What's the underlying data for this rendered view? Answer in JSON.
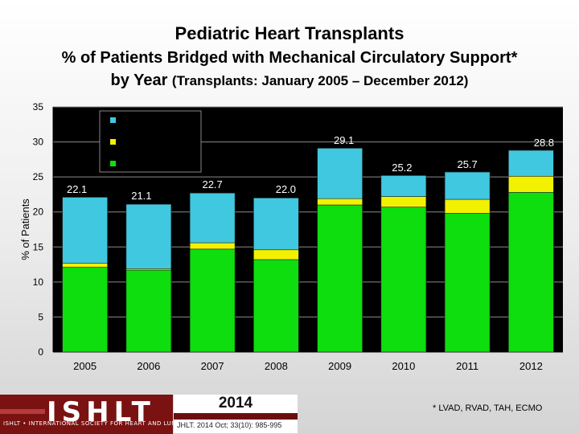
{
  "title_line1": "Pediatric Heart Transplants",
  "title_line2": "% of Patients Bridged with Mechanical Circulatory Support*",
  "title_line3_main": "by Year",
  "title_line3_small": "(Transplants: January 2005 – December 2012)",
  "footer": {
    "logo_text": "ISHLT",
    "logo_subtext": "ISHLT • INTERNATIONAL SOCIETY FOR HEART AND LUNG TRANSPLANTATION",
    "year": "2014",
    "citation": "JHLT. 2014 Oct; 33(10): 985-995",
    "footnote": "* LVAD, RVAD, TAH, ECMO"
  },
  "colors": {
    "bottom": "#0edd0e",
    "middle": "#f2f200",
    "top": "#40c8e0",
    "plot_bg": "#000000",
    "legend_border": "#888888"
  },
  "chart_data": {
    "type": "bar",
    "stacked": true,
    "ylabel": "% of Patients",
    "ylim": [
      0,
      35
    ],
    "yticks": [
      0,
      5,
      10,
      15,
      20,
      25,
      30,
      35
    ],
    "grid": true,
    "categories": [
      "2005",
      "2006",
      "2007",
      "2008",
      "2009",
      "2010",
      "2011",
      "2012"
    ],
    "series": [
      {
        "key": "bottom",
        "values": [
          12.1,
          11.7,
          14.7,
          13.2,
          21.0,
          20.7,
          19.8,
          22.8
        ]
      },
      {
        "key": "middle",
        "values": [
          0.6,
          0.2,
          0.9,
          1.4,
          0.9,
          1.5,
          2.0,
          2.3
        ]
      },
      {
        "key": "top",
        "values": [
          9.4,
          9.2,
          7.1,
          7.4,
          7.2,
          3.0,
          3.9,
          3.7
        ]
      }
    ],
    "totals": [
      22.1,
      21.1,
      22.7,
      22.0,
      29.1,
      25.2,
      25.7,
      28.8
    ],
    "total_labels": [
      "22.1",
      "21.1",
      "22.7",
      "22.0",
      "29.1",
      "25.2",
      "25.7",
      "28.8"
    ],
    "legend": {
      "placement": "top-left",
      "entries": [
        "",
        "",
        ""
      ]
    }
  }
}
